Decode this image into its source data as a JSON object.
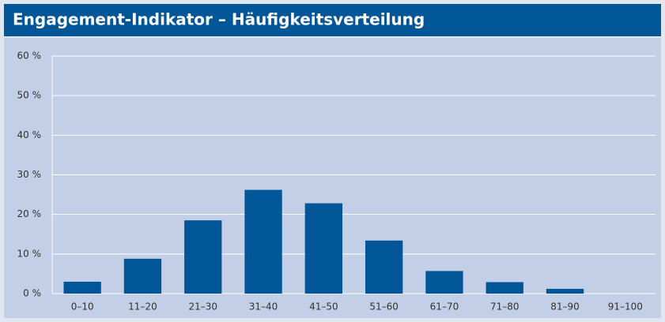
{
  "chart_data": {
    "type": "bar",
    "title": "Engagement-Indikator – Häufigkeitsverteilung",
    "categories": [
      "0–10",
      "11–20",
      "21–30",
      "31–40",
      "41–50",
      "51–60",
      "61–70",
      "71–80",
      "81–90",
      "91–100"
    ],
    "values": [
      3,
      8.8,
      18.5,
      26.2,
      22.8,
      13.4,
      5.7,
      2.9,
      1.2,
      0
    ],
    "color": "#005696",
    "ylim": [
      0,
      60
    ],
    "yticks": [
      {
        "value": 0,
        "label": "0 %"
      },
      {
        "value": 10,
        "label": "10 %"
      },
      {
        "value": 20,
        "label": "20 %"
      },
      {
        "value": 30,
        "label": "30 %"
      },
      {
        "value": 40,
        "label": "40 %"
      },
      {
        "value": 50,
        "label": "50 %"
      },
      {
        "value": 60,
        "label": "60 %"
      }
    ],
    "grid": true
  }
}
